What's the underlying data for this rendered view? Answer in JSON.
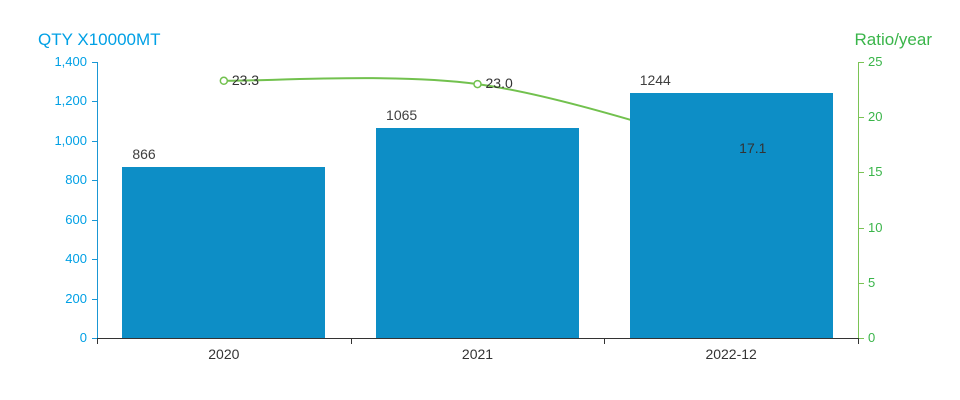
{
  "chart_data": {
    "type": "bar",
    "categories": [
      "2020",
      "2021",
      "2022-12"
    ],
    "series": [
      {
        "name": "QTY X10000MT",
        "type": "bar",
        "axis": "left",
        "values": [
          866,
          1065,
          1244
        ],
        "labels": [
          "866",
          "1065",
          "1244"
        ],
        "color": "#0d8ec6"
      },
      {
        "name": "Ratio/year",
        "type": "line",
        "axis": "right",
        "values": [
          23.3,
          23.0,
          17.1
        ],
        "labels": [
          "23.3",
          "23.0",
          "17.1"
        ],
        "color": "#72c14e",
        "marker_fill": "#ffffff"
      }
    ],
    "left_axis": {
      "label": "QTY X10000MT",
      "min": 0,
      "max": 1400,
      "tick_step": 200,
      "tick_labels": [
        "0",
        "200",
        "400",
        "600",
        "800",
        "1,000",
        "1,200",
        "1,400"
      ],
      "color": "#00a0e5",
      "line_color": "#1a97d4"
    },
    "right_axis": {
      "label": "Ratio/year",
      "min": 0,
      "max": 25,
      "tick_step": 5,
      "tick_labels": [
        "0",
        "5",
        "10",
        "15",
        "20",
        "25"
      ],
      "color": "#3ab54a",
      "line_color": "#7ac355"
    },
    "x_axis": {
      "labels": [
        "2020",
        "2021",
        "2022-12"
      ],
      "line_color": "#333333",
      "text_color": "#333333"
    },
    "grid": false,
    "legend": "none"
  }
}
